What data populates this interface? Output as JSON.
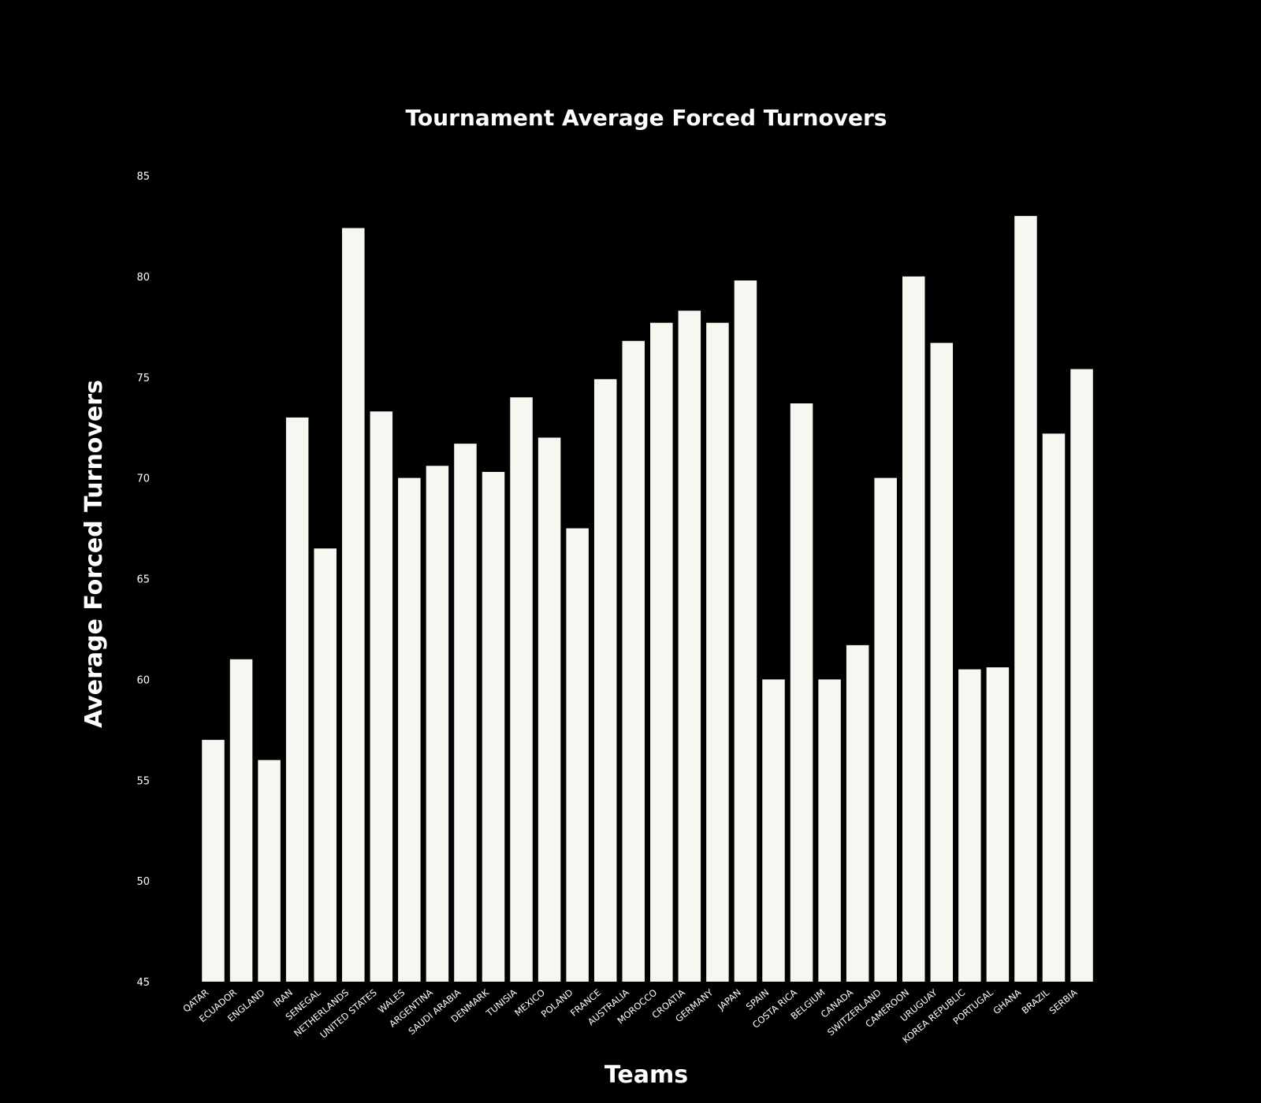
{
  "chart_data": {
    "type": "bar",
    "title": "Tournament Average Forced Turnovers",
    "xlabel": "Teams",
    "ylabel": "Average Forced Turnovers",
    "ylim": [
      45,
      85
    ],
    "yticks": [
      45,
      50,
      55,
      60,
      65,
      70,
      75,
      80,
      85
    ],
    "grid": false,
    "categories": [
      "QATAR",
      "ECUADOR",
      "ENGLAND",
      "IRAN",
      "SENEGAL",
      "NETHERLANDS",
      "UNITED STATES",
      "WALES",
      "ARGENTINA",
      "SAUDI ARABIA",
      "DENMARK",
      "TUNISIA",
      "MEXICO",
      "POLAND",
      "FRANCE",
      "AUSTRALIA",
      "MOROCCO",
      "CROATIA",
      "GERMANY",
      "JAPAN",
      "SPAIN",
      "COSTA RICA",
      "BELGIUM",
      "CANADA",
      "SWITZERLAND",
      "CAMEROON",
      "URUGUAY",
      "KOREA REPUBLIC",
      "PORTUGAL",
      "GHANA",
      "BRAZIL",
      "SERBIA"
    ],
    "values": [
      57,
      61,
      56,
      73,
      66.5,
      82.4,
      73.3,
      70,
      70.6,
      71.7,
      70.3,
      74,
      72,
      67.5,
      74.9,
      76.8,
      77.7,
      78.3,
      77.7,
      79.8,
      60,
      73.7,
      60,
      61.7,
      70,
      80,
      76.7,
      60.5,
      60.6,
      83,
      72.2,
      75.4
    ],
    "colors": {
      "background": "#000000",
      "bar": "#f8f6f0",
      "text": "#ffffff"
    }
  }
}
